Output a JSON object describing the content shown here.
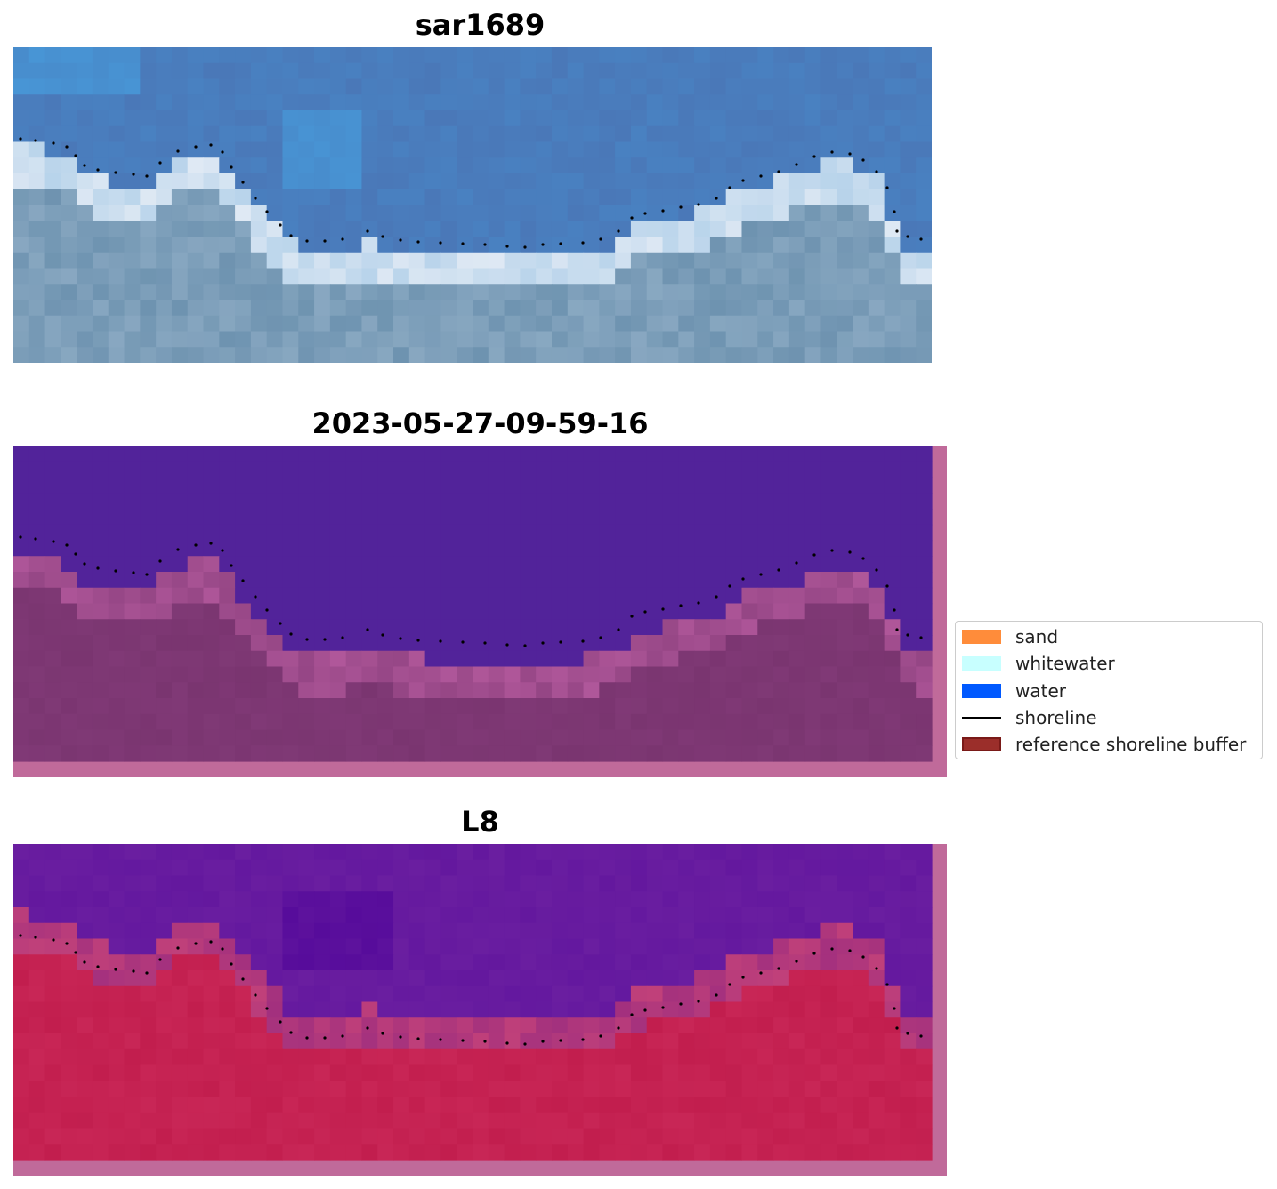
{
  "panels": [
    {
      "title": "sar1689",
      "kind": "rgb"
    },
    {
      "title": "2023-05-27-09-59-16",
      "kind": "classification"
    },
    {
      "title": "L8",
      "kind": "index"
    }
  ],
  "legend": {
    "items": [
      {
        "label": "sand",
        "type": "patch",
        "color": "#ff8c3a",
        "edge": "#ff8c3a"
      },
      {
        "label": "whitewater",
        "type": "patch",
        "color": "#c8ffff",
        "edge": "#c8ffff"
      },
      {
        "label": "water",
        "type": "patch",
        "color": "#0059ff",
        "edge": "#0059ff"
      },
      {
        "label": "shoreline",
        "type": "line",
        "color": "#000000"
      },
      {
        "label": "reference shoreline buffer",
        "type": "patch",
        "color": "#9b2e2a",
        "edge": "#7a1a18"
      }
    ]
  },
  "colors": {
    "sky_water": "#4a78b8",
    "whitewater": "#dfe9f4",
    "nearshore": "#6e93b0",
    "class_water": "#52239a",
    "class_land": "#7a3570",
    "buffer_edge": "#c06a9a",
    "index_water": "#6a1ea0",
    "index_land": "#c21e4e",
    "shoreline": "#000000"
  }
}
